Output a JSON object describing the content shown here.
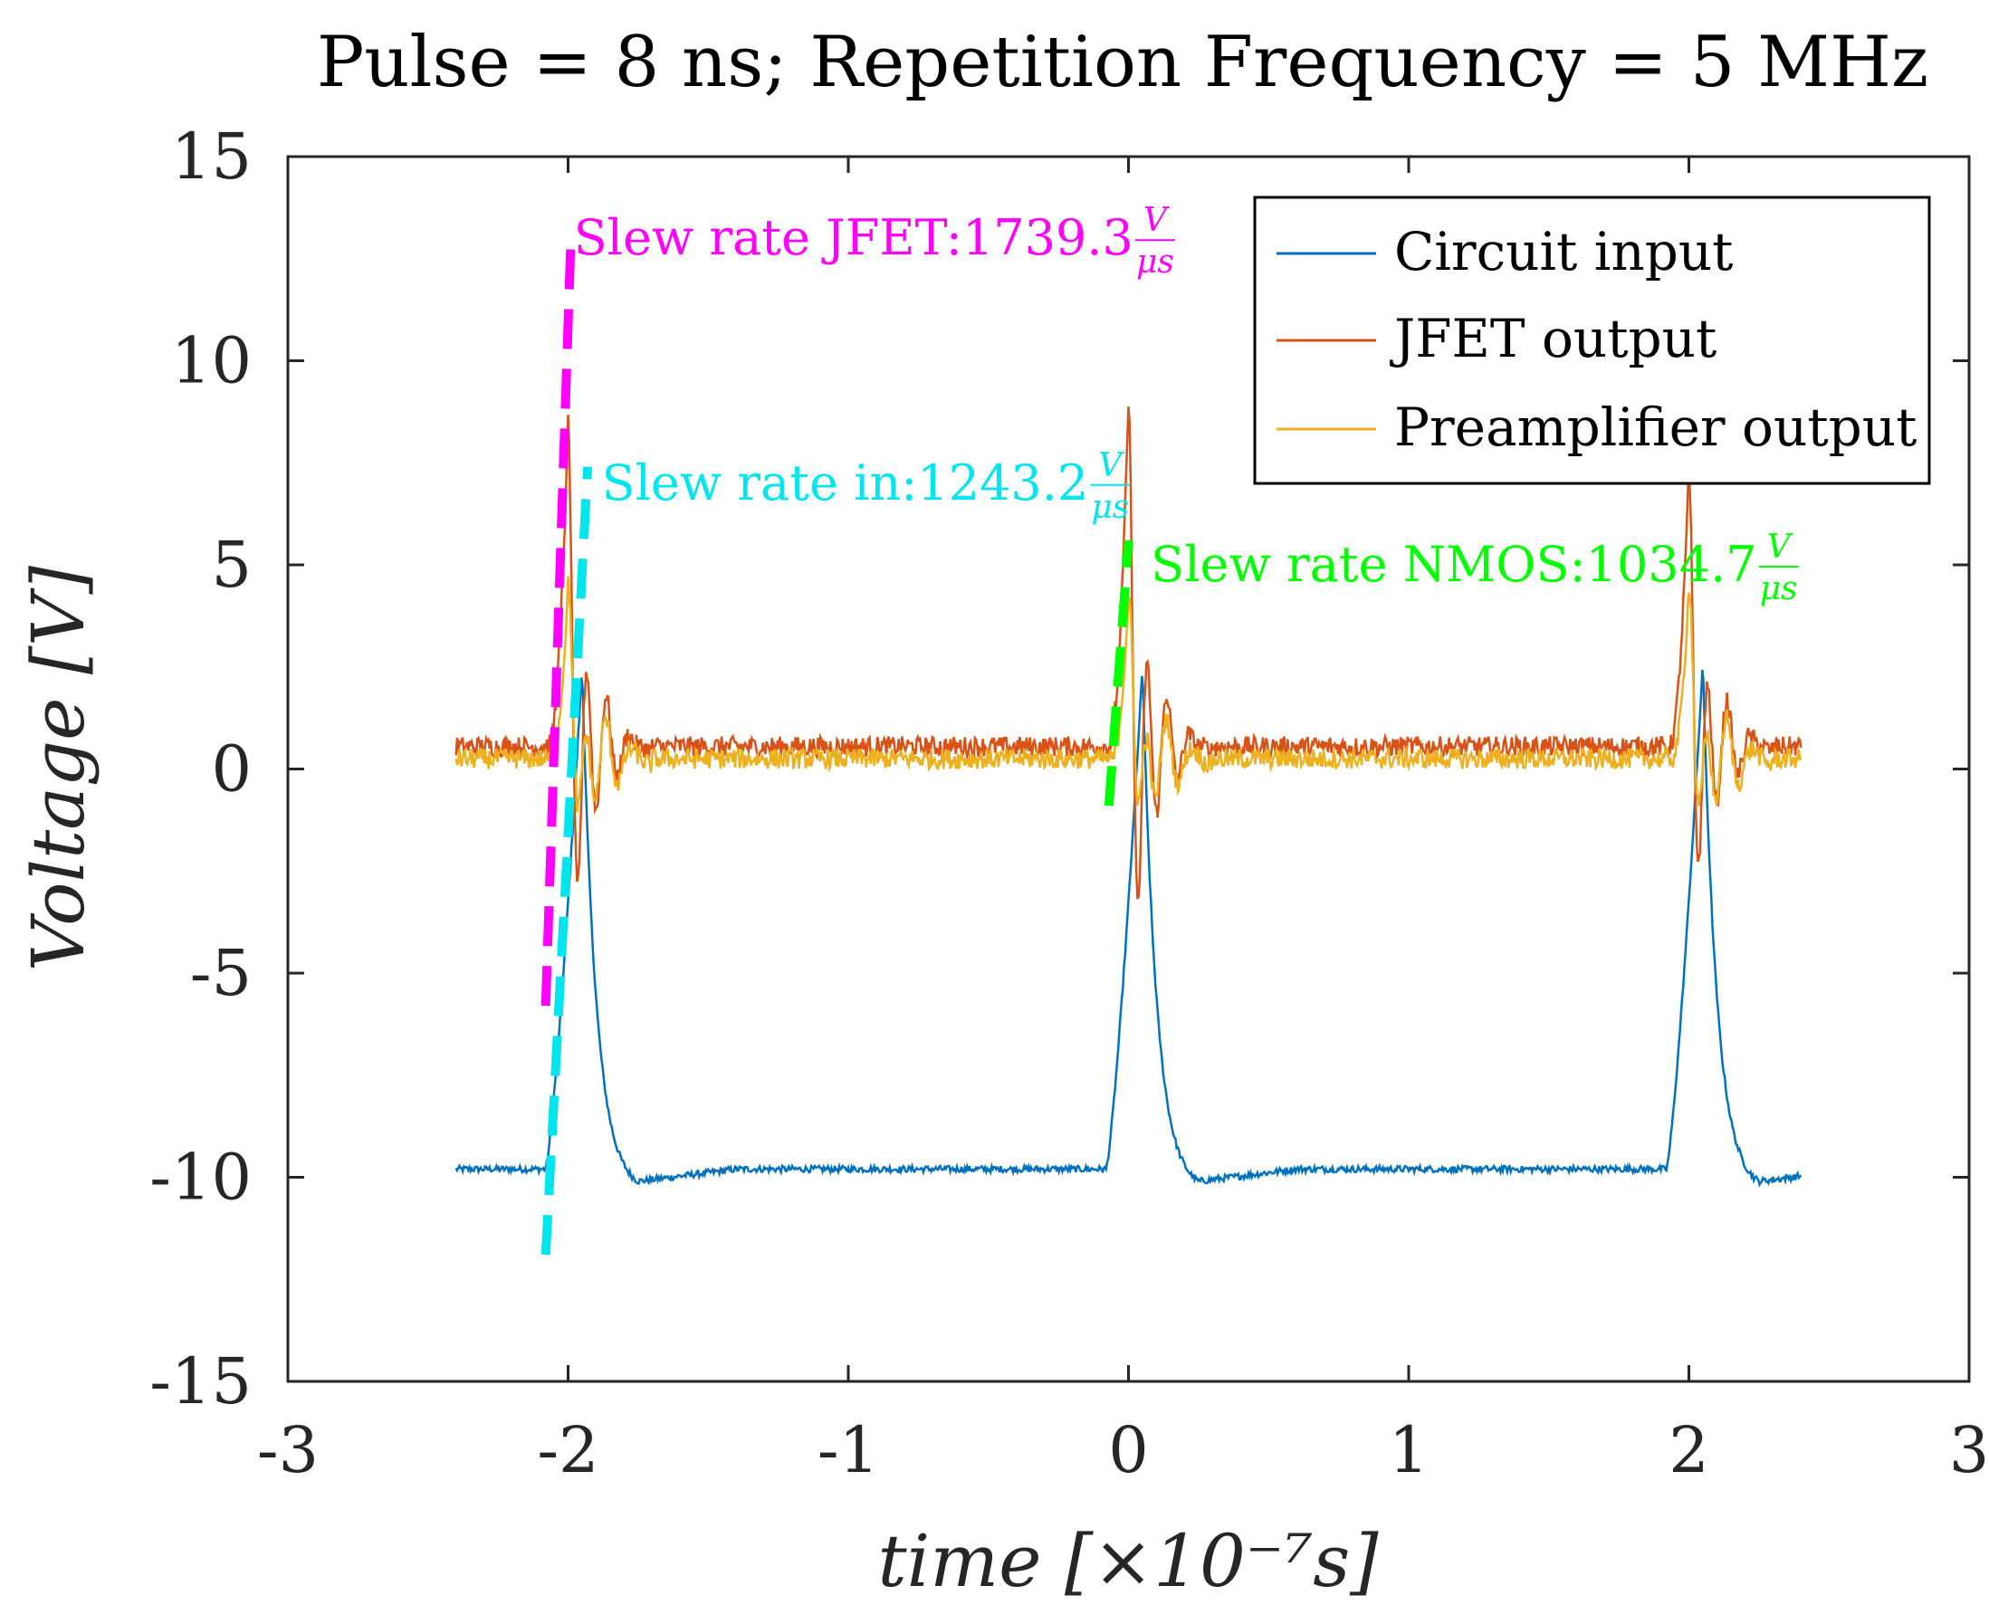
{
  "chart_data": {
    "type": "line",
    "title": "Pulse = 8 ns; Repetition Frequency = 5 MHz",
    "xlabel": "time [×10⁻⁷s]",
    "ylabel": "Voltage [V]",
    "xlim": [
      -3,
      3
    ],
    "ylim": [
      -15,
      15
    ],
    "x_ticks": [
      -3,
      -2,
      -1,
      0,
      1,
      2,
      3
    ],
    "x_tick_labels": [
      "-3",
      "-2",
      "-1",
      "0",
      "1",
      "2",
      "3"
    ],
    "y_ticks": [
      -15,
      -10,
      -5,
      0,
      5,
      10,
      15
    ],
    "y_tick_labels": [
      "-15",
      "-10",
      "-5",
      "0",
      "5",
      "10",
      "15"
    ],
    "grid": false,
    "legend_position": "top-right",
    "pulse_centers": [
      -2.0,
      0.0,
      2.0
    ],
    "series": [
      {
        "name": "Circuit input",
        "color": "#0072BD",
        "x_range": [
          -2.4,
          2.4
        ],
        "baseline": -9.8,
        "pulse_rise_start_offset": -0.08,
        "pulse_peak_offset": 0.05,
        "pulse_peak": [
          2.5,
          2.5,
          2.6
        ],
        "pulse_fall_end_offset": 0.25,
        "undershoot": -10.1,
        "noise": 0.08
      },
      {
        "name": "JFET output",
        "color": "#D95319",
        "x_range": [
          -2.4,
          2.4
        ],
        "baseline": 0.55,
        "pulse_rise_start_offset": -0.07,
        "pulse_peak_offset": 0.0,
        "pulse_peak": [
          8.5,
          9.0,
          7.3
        ],
        "ringing_amp": 1.5,
        "noise": 0.25
      },
      {
        "name": "Preamplifier output",
        "color": "#EDB120",
        "x_range": [
          -2.4,
          2.4
        ],
        "baseline": 0.25,
        "pulse_rise_start_offset": -0.06,
        "pulse_peak_offset": 0.0,
        "pulse_peak": [
          4.5,
          4.2,
          4.5
        ],
        "ringing_amp": 1.8,
        "noise": 0.25
      }
    ],
    "annotations": [
      {
        "label": "Slew rate JFET:1739.3",
        "unit_num": "V",
        "unit_den": "μs",
        "color": "#FF00FF",
        "text_at": [
          -1.98,
          13.0
        ],
        "line_from": [
          -2.08,
          -5.8
        ],
        "line_to": [
          -1.99,
          13.0
        ]
      },
      {
        "label": "Slew rate in:1243.2",
        "unit_num": "V",
        "unit_den": "μs",
        "color": "#00E5EE",
        "text_at": [
          -1.88,
          7.0
        ],
        "line_from": [
          -2.08,
          -11.9
        ],
        "line_to": [
          -1.93,
          7.4
        ]
      },
      {
        "label": "Slew rate NMOS:1034.7",
        "unit_num": "V",
        "unit_den": "μs",
        "color": "#00FF00",
        "text_at": [
          0.08,
          5.0
        ],
        "line_from": [
          -0.07,
          -0.9
        ],
        "line_to": [
          0.0,
          5.6
        ]
      }
    ]
  }
}
